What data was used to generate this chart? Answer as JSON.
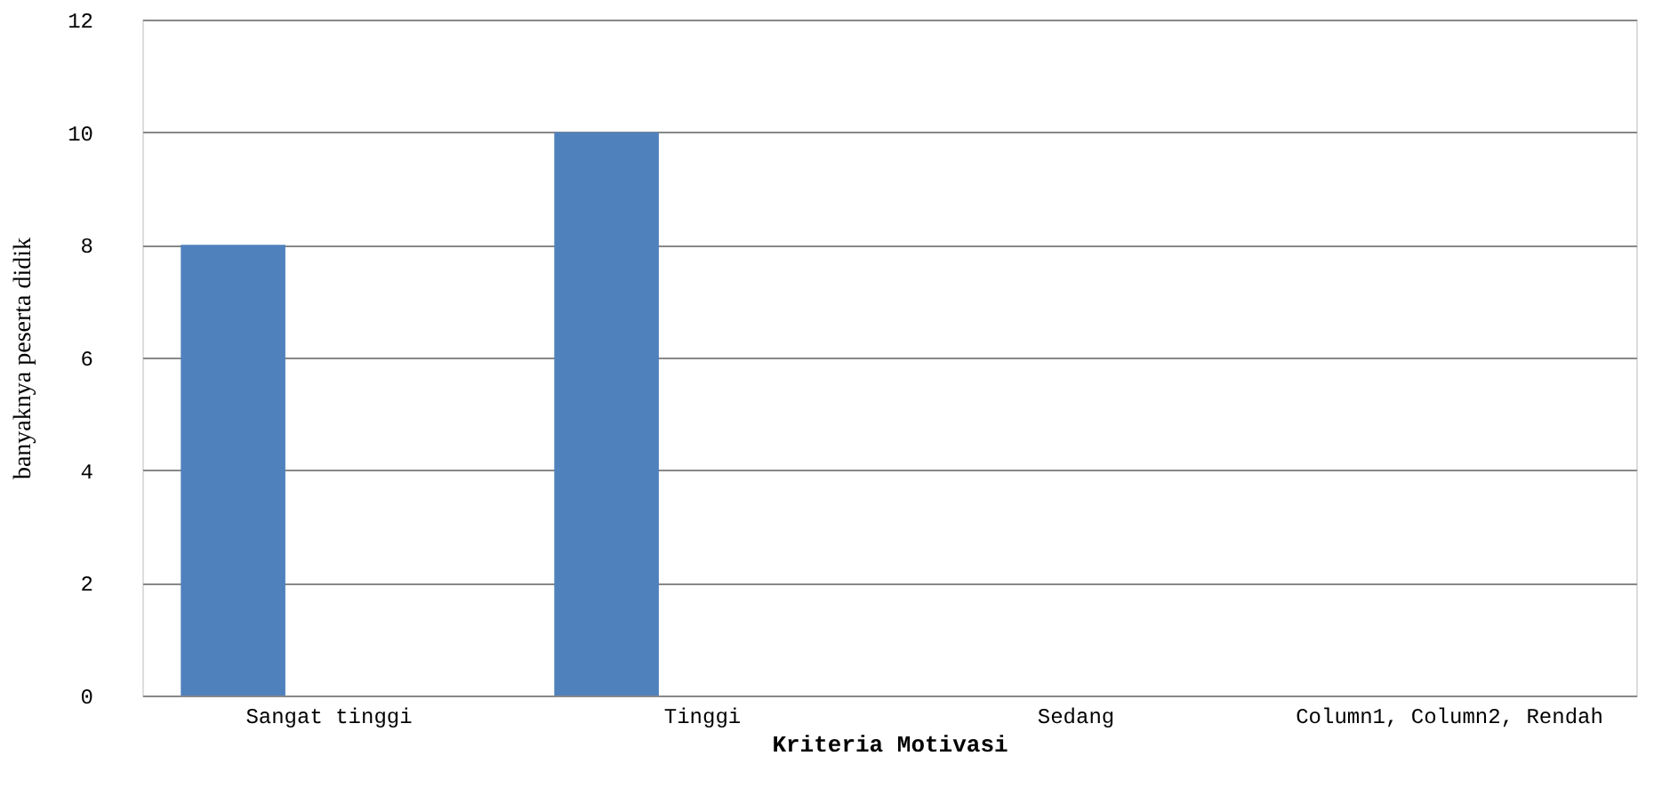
{
  "chart_data": {
    "type": "bar",
    "categories": [
      "Sangat tinggi",
      "Tinggi",
      "Sedang",
      "Column1, Column2, Rendah"
    ],
    "values": [
      8,
      10,
      0,
      0
    ],
    "color": "#4f81bd",
    "xlabel": "Kriteria   Motivasi",
    "ylabel": "banyaknya peserta didik",
    "ylim": [
      0,
      12
    ],
    "yticks": [
      0,
      2,
      4,
      6,
      8,
      10,
      12
    ],
    "grid": "y"
  }
}
